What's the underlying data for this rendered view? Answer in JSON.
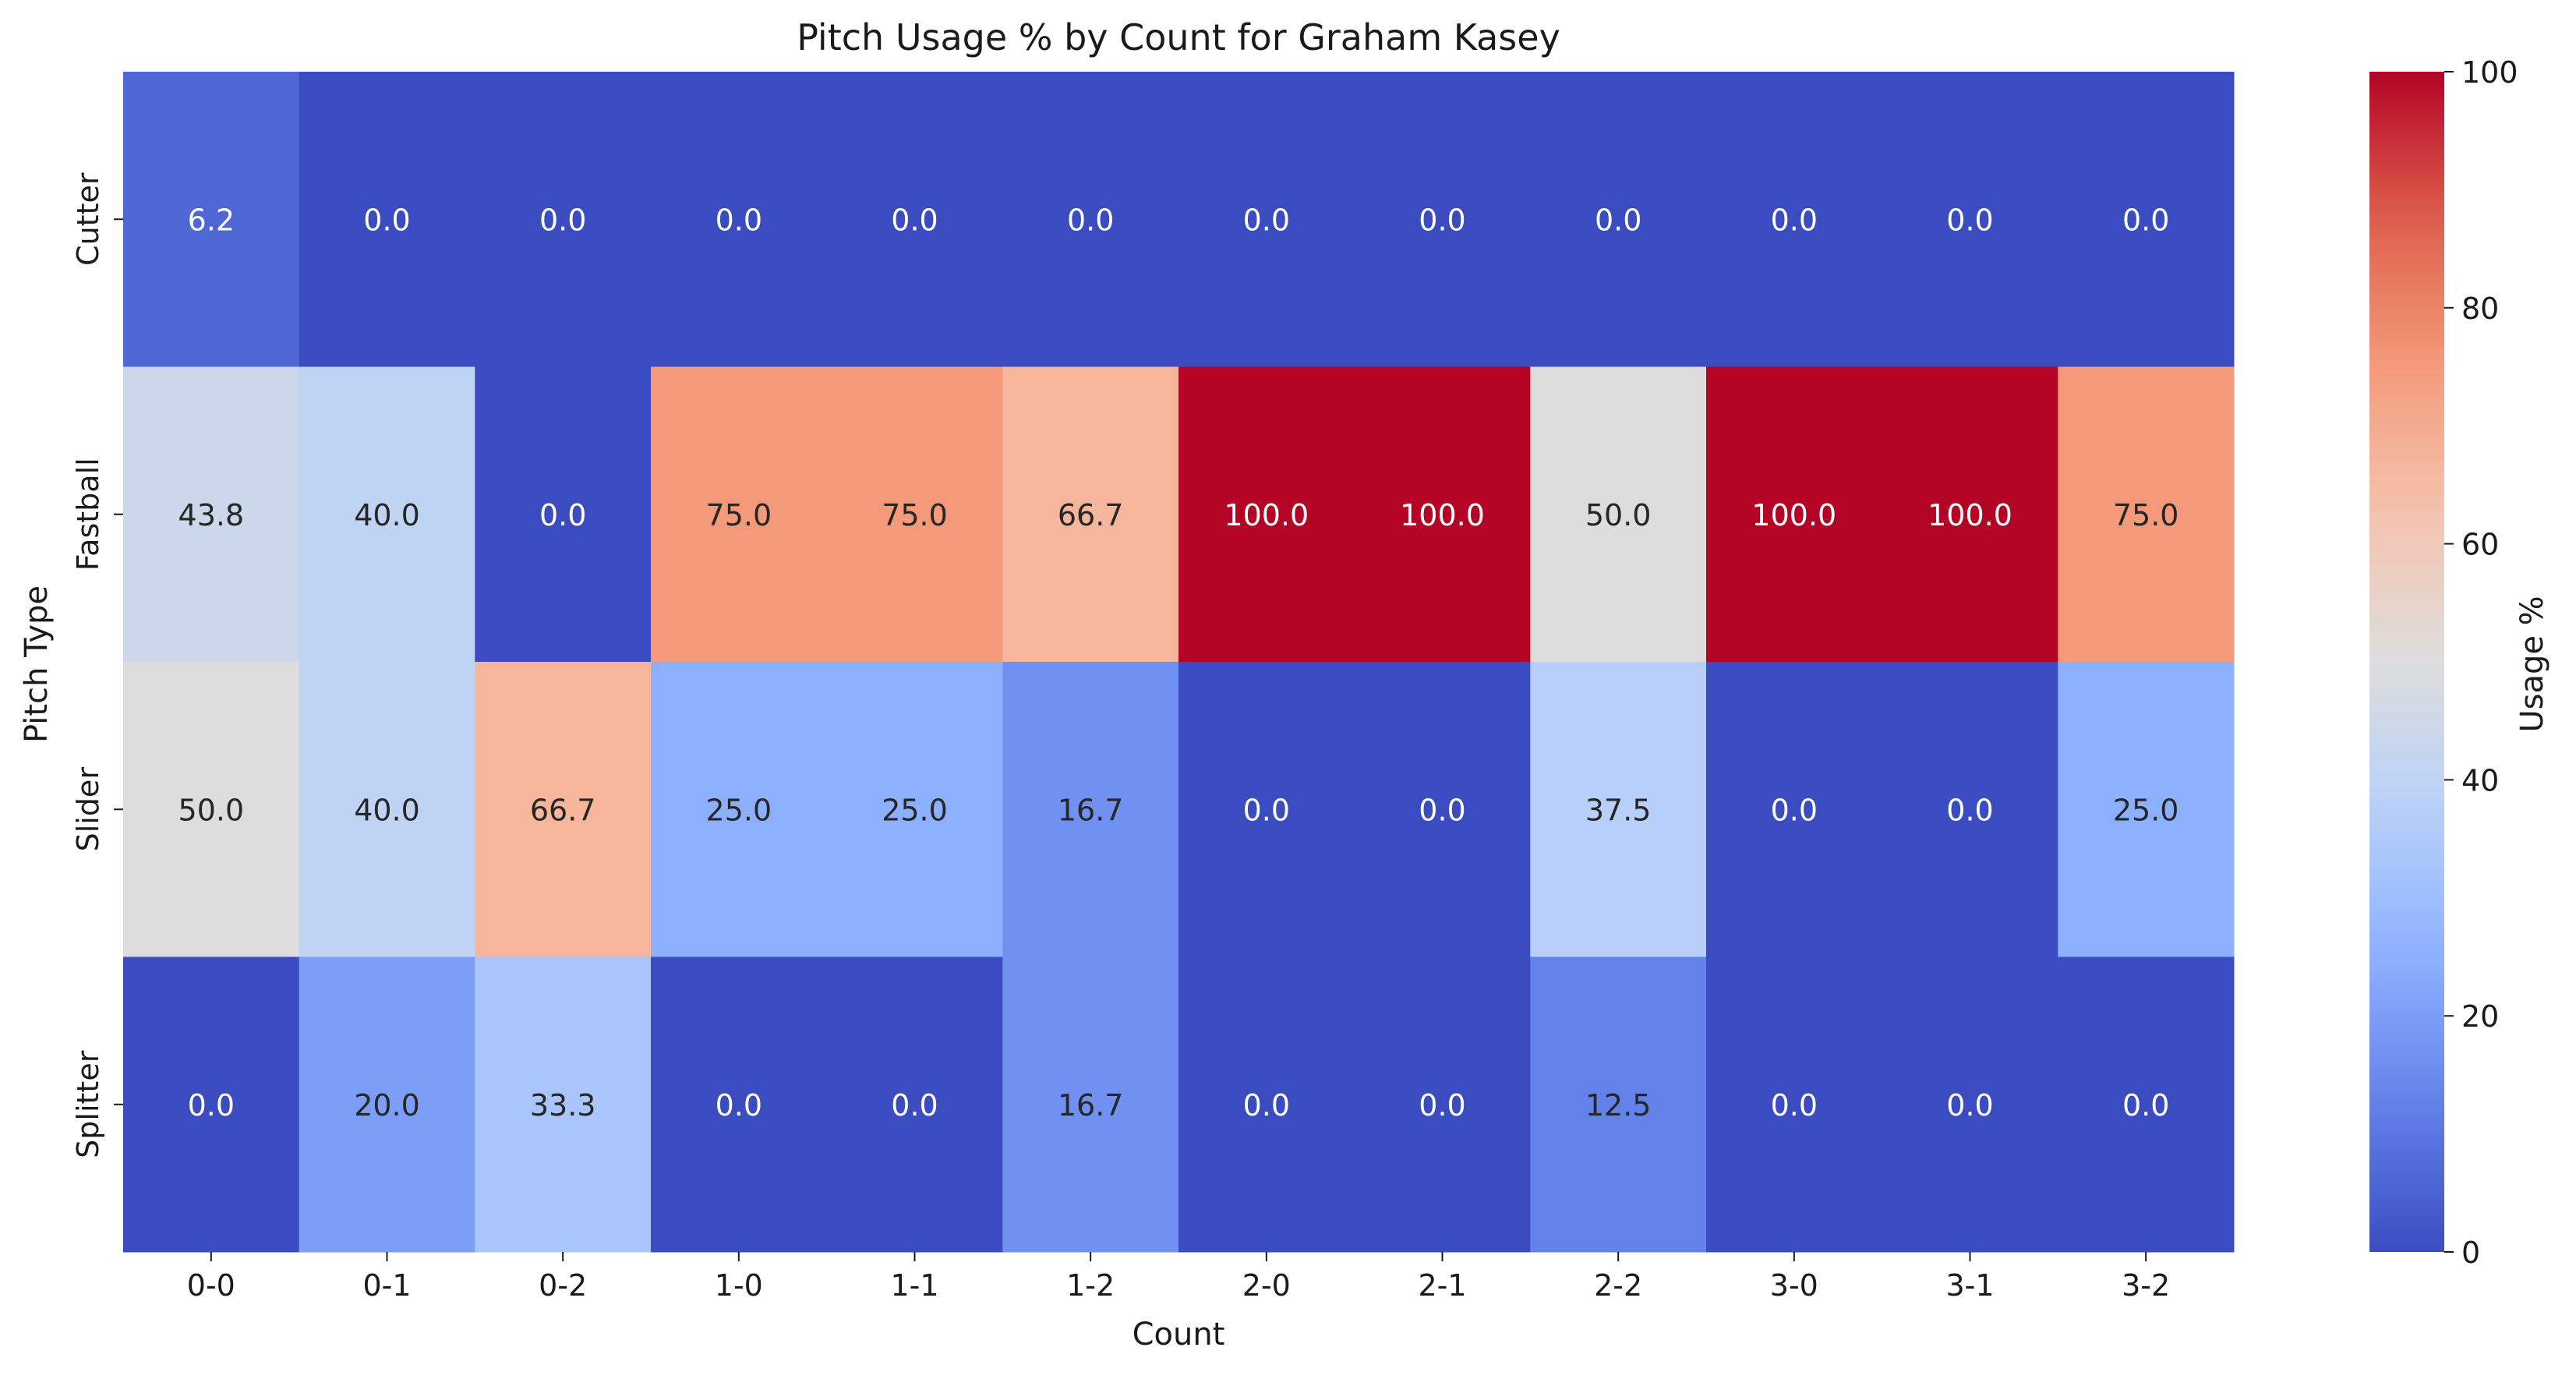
{
  "chart_data": {
    "type": "heatmap",
    "title": "Pitch Usage % by Count for Graham Kasey",
    "xlabel": "Count",
    "ylabel": "Pitch Type",
    "x_categories": [
      "0-0",
      "0-1",
      "0-2",
      "1-0",
      "1-1",
      "1-2",
      "2-0",
      "2-1",
      "2-2",
      "3-0",
      "3-1",
      "3-2"
    ],
    "y_categories": [
      "Cutter",
      "Fastball",
      "Slider",
      "Splitter"
    ],
    "values": [
      [
        6.2,
        0.0,
        0.0,
        0.0,
        0.0,
        0.0,
        0.0,
        0.0,
        0.0,
        0.0,
        0.0,
        0.0
      ],
      [
        43.8,
        40.0,
        0.0,
        75.0,
        75.0,
        66.7,
        100.0,
        100.0,
        50.0,
        100.0,
        100.0,
        75.0
      ],
      [
        50.0,
        40.0,
        66.7,
        25.0,
        25.0,
        16.7,
        0.0,
        0.0,
        37.5,
        0.0,
        0.0,
        25.0
      ],
      [
        0.0,
        20.0,
        33.3,
        0.0,
        0.0,
        16.7,
        0.0,
        0.0,
        12.5,
        0.0,
        0.0,
        0.0
      ]
    ],
    "value_format": "0.1f",
    "colormap": "coolwarm",
    "colorbar": {
      "label": "Usage %",
      "range": [
        0,
        100
      ],
      "ticks": [
        "0",
        "20",
        "40",
        "60",
        "80",
        "100"
      ]
    },
    "grid": false,
    "legend": "none"
  }
}
